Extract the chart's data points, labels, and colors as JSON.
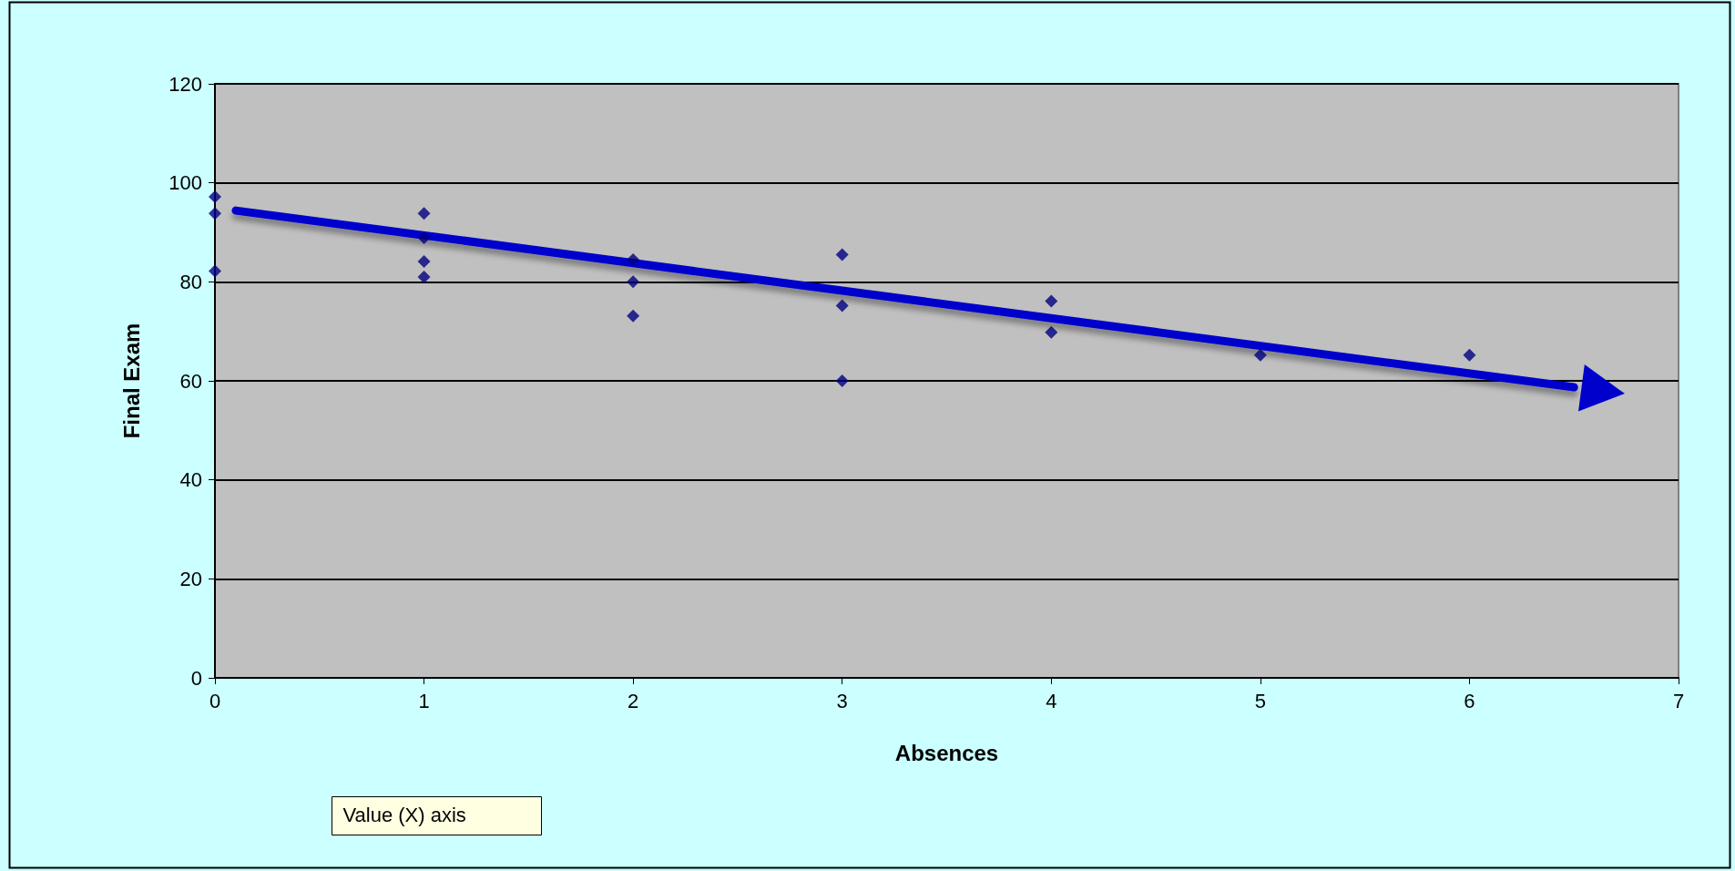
{
  "chart_data": {
    "type": "scatter",
    "xlabel": "Absences",
    "ylabel": "Final Exam",
    "marker": "diamond",
    "grid": "y",
    "annotations": [
      "Value (X) axis"
    ],
    "xlim": [
      0,
      7
    ],
    "xticks": [
      0,
      1,
      2,
      3,
      4,
      5,
      6,
      7
    ],
    "ylim": [
      0,
      120
    ],
    "yticks": [
      0,
      20,
      40,
      60,
      80,
      100,
      120
    ],
    "series": [
      {
        "color": "#000080",
        "x": [
          0,
          0,
          0,
          1,
          1,
          1,
          1,
          2,
          2,
          2,
          3,
          3,
          3,
          4,
          4,
          5,
          6
        ],
        "values": [
          97.2,
          93.8,
          82.2,
          93.8,
          88.9,
          84.1,
          81,
          84.5,
          80,
          73.1,
          85.5,
          75.2,
          60,
          76.1,
          69.8,
          65.2,
          65.2
        ]
      },
      {
        "type": "line",
        "marker": "none",
        "color": "#0000cc",
        "x": [
          0.1,
          6.5
        ],
        "values": [
          94.4,
          58.7
        ]
      }
    ]
  }
}
